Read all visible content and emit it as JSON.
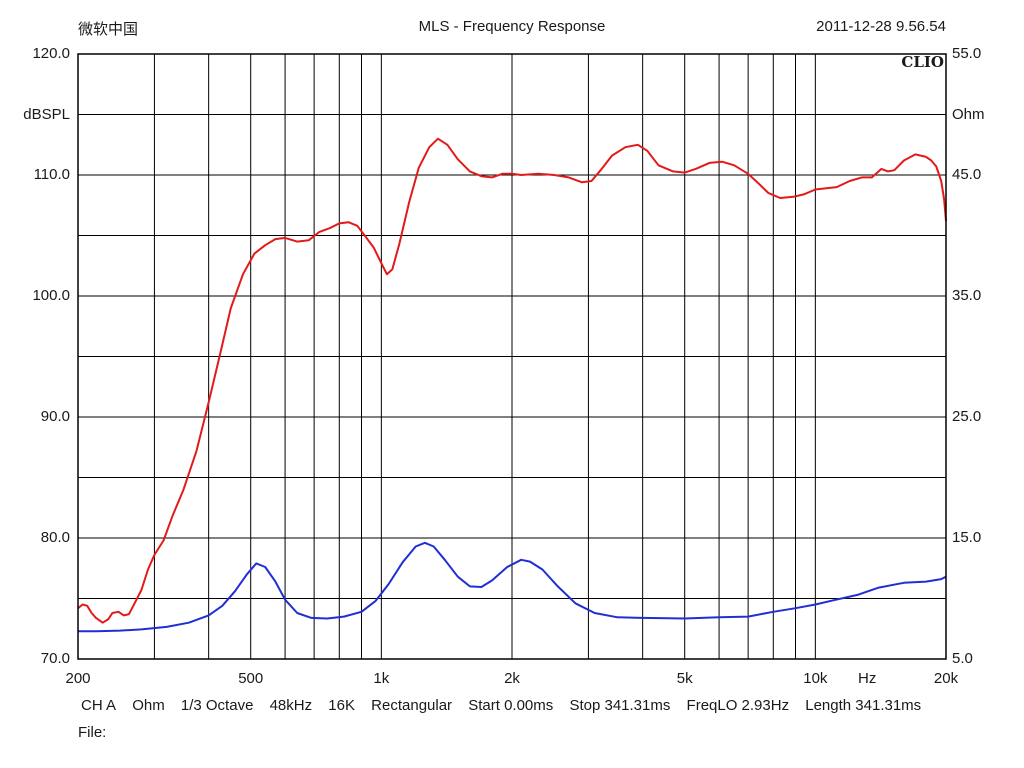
{
  "header": {
    "left": "微软中国",
    "title": "MLS - Frequency Response",
    "datetime": "2011-12-28 9.56.54"
  },
  "brand": "CLIO",
  "footer": {
    "items": [
      "CH A",
      "Ohm",
      "1/3 Octave",
      "48kHz",
      "16K",
      "Rectangular",
      "Start 0.00ms",
      "Stop 341.31ms",
      "FreqLO 2.93Hz",
      "Length 341.31ms"
    ],
    "file_label": "File:"
  },
  "chart_data": {
    "type": "line",
    "xscale": "log",
    "xlim": [
      200,
      20000
    ],
    "ylim": [
      70,
      120
    ],
    "y2lim": [
      5,
      55
    ],
    "ylabel": "dBSPL",
    "y2label": "Ohm",
    "xlabel": "Hz",
    "grid": true,
    "x_ticks": [
      {
        "value": 200,
        "label": "200"
      },
      {
        "value": 500,
        "label": "500"
      },
      {
        "value": 1000,
        "label": "1k"
      },
      {
        "value": 2000,
        "label": "2k"
      },
      {
        "value": 5000,
        "label": "5k"
      },
      {
        "value": 10000,
        "label": "10k"
      },
      {
        "value": 20000,
        "label": "20k"
      }
    ],
    "x_grid": [
      300,
      400,
      500,
      600,
      700,
      800,
      900,
      1000,
      2000,
      3000,
      4000,
      5000,
      6000,
      7000,
      8000,
      9000,
      10000
    ],
    "y_ticks": [
      {
        "value": 120,
        "label": "120.0"
      },
      {
        "value": 110,
        "label": "110.0"
      },
      {
        "value": 100,
        "label": "100.0"
      },
      {
        "value": 90,
        "label": "90.0"
      },
      {
        "value": 80,
        "label": "80.0"
      },
      {
        "value": 70,
        "label": "70.0"
      }
    ],
    "y_grid": [
      115,
      105,
      95,
      85,
      75
    ],
    "y2_ticks": [
      {
        "value": 55,
        "label": "55.0"
      },
      {
        "value": 45,
        "label": "45.0"
      },
      {
        "value": 35,
        "label": "35.0"
      },
      {
        "value": 25,
        "label": "25.0"
      },
      {
        "value": 15,
        "label": "15.0"
      },
      {
        "value": 5,
        "label": "5.0"
      }
    ],
    "series": [
      {
        "color": "#e31a1a",
        "axis": "left",
        "points": [
          [
            200,
            74.2
          ],
          [
            205,
            74.5
          ],
          [
            210,
            74.4
          ],
          [
            215,
            73.8
          ],
          [
            220,
            73.4
          ],
          [
            228,
            73.0
          ],
          [
            235,
            73.3
          ],
          [
            240,
            73.8
          ],
          [
            248,
            73.9
          ],
          [
            255,
            73.6
          ],
          [
            262,
            73.7
          ],
          [
            270,
            74.6
          ],
          [
            280,
            75.7
          ],
          [
            290,
            77.4
          ],
          [
            300,
            78.6
          ],
          [
            315,
            79.8
          ],
          [
            330,
            81.8
          ],
          [
            350,
            84.0
          ],
          [
            375,
            87.2
          ],
          [
            400,
            91.2
          ],
          [
            425,
            95.2
          ],
          [
            450,
            99.0
          ],
          [
            480,
            101.8
          ],
          [
            510,
            103.5
          ],
          [
            540,
            104.2
          ],
          [
            570,
            104.7
          ],
          [
            600,
            104.8
          ],
          [
            640,
            104.5
          ],
          [
            680,
            104.6
          ],
          [
            720,
            105.3
          ],
          [
            760,
            105.6
          ],
          [
            800,
            106.0
          ],
          [
            840,
            106.1
          ],
          [
            880,
            105.8
          ],
          [
            920,
            104.9
          ],
          [
            960,
            104.0
          ],
          [
            1000,
            102.7
          ],
          [
            1030,
            101.8
          ],
          [
            1060,
            102.2
          ],
          [
            1100,
            104.3
          ],
          [
            1160,
            107.8
          ],
          [
            1220,
            110.6
          ],
          [
            1290,
            112.3
          ],
          [
            1350,
            113.0
          ],
          [
            1420,
            112.5
          ],
          [
            1500,
            111.3
          ],
          [
            1600,
            110.3
          ],
          [
            1700,
            109.9
          ],
          [
            1800,
            109.8
          ],
          [
            1900,
            110.1
          ],
          [
            2000,
            110.1
          ],
          [
            2100,
            110.0
          ],
          [
            2300,
            110.1
          ],
          [
            2500,
            110.0
          ],
          [
            2700,
            109.8
          ],
          [
            2900,
            109.4
          ],
          [
            3050,
            109.5
          ],
          [
            3200,
            110.4
          ],
          [
            3400,
            111.6
          ],
          [
            3650,
            112.3
          ],
          [
            3900,
            112.5
          ],
          [
            4100,
            112.0
          ],
          [
            4350,
            110.8
          ],
          [
            4700,
            110.3
          ],
          [
            5000,
            110.2
          ],
          [
            5300,
            110.5
          ],
          [
            5700,
            111.0
          ],
          [
            6100,
            111.1
          ],
          [
            6500,
            110.8
          ],
          [
            7000,
            110.1
          ],
          [
            7400,
            109.3
          ],
          [
            7800,
            108.5
          ],
          [
            8300,
            108.1
          ],
          [
            8900,
            108.2
          ],
          [
            9400,
            108.4
          ],
          [
            10000,
            108.8
          ],
          [
            10600,
            108.9
          ],
          [
            11200,
            109.0
          ],
          [
            12000,
            109.5
          ],
          [
            12800,
            109.8
          ],
          [
            13500,
            109.8
          ],
          [
            14200,
            110.5
          ],
          [
            14700,
            110.3
          ],
          [
            15200,
            110.4
          ],
          [
            16000,
            111.2
          ],
          [
            17000,
            111.7
          ],
          [
            18000,
            111.5
          ],
          [
            18500,
            111.2
          ],
          [
            19000,
            110.7
          ],
          [
            19500,
            109.5
          ],
          [
            19800,
            108.0
          ],
          [
            20000,
            106.2
          ]
        ]
      },
      {
        "color": "#1f2fd4",
        "axis": "right",
        "points": [
          [
            200,
            7.3
          ],
          [
            220,
            7.3
          ],
          [
            250,
            7.35
          ],
          [
            280,
            7.45
          ],
          [
            320,
            7.65
          ],
          [
            360,
            8.0
          ],
          [
            400,
            8.6
          ],
          [
            430,
            9.4
          ],
          [
            460,
            10.6
          ],
          [
            490,
            12.0
          ],
          [
            515,
            12.9
          ],
          [
            540,
            12.6
          ],
          [
            570,
            11.4
          ],
          [
            600,
            9.9
          ],
          [
            640,
            8.8
          ],
          [
            690,
            8.4
          ],
          [
            750,
            8.35
          ],
          [
            820,
            8.5
          ],
          [
            900,
            8.9
          ],
          [
            970,
            9.8
          ],
          [
            1040,
            11.2
          ],
          [
            1120,
            13.0
          ],
          [
            1200,
            14.3
          ],
          [
            1260,
            14.6
          ],
          [
            1320,
            14.3
          ],
          [
            1400,
            13.2
          ],
          [
            1500,
            11.8
          ],
          [
            1600,
            11.0
          ],
          [
            1700,
            10.95
          ],
          [
            1800,
            11.5
          ],
          [
            1950,
            12.6
          ],
          [
            2100,
            13.2
          ],
          [
            2200,
            13.05
          ],
          [
            2350,
            12.4
          ],
          [
            2550,
            11.0
          ],
          [
            2800,
            9.6
          ],
          [
            3100,
            8.8
          ],
          [
            3500,
            8.45
          ],
          [
            4000,
            8.4
          ],
          [
            5000,
            8.35
          ],
          [
            6000,
            8.45
          ],
          [
            7000,
            8.5
          ],
          [
            8000,
            8.9
          ],
          [
            9000,
            9.2
          ],
          [
            10000,
            9.5
          ],
          [
            11000,
            9.85
          ],
          [
            12500,
            10.3
          ],
          [
            14000,
            10.9
          ],
          [
            16000,
            11.3
          ],
          [
            18000,
            11.4
          ],
          [
            19500,
            11.6
          ],
          [
            20000,
            11.8
          ]
        ]
      }
    ]
  }
}
